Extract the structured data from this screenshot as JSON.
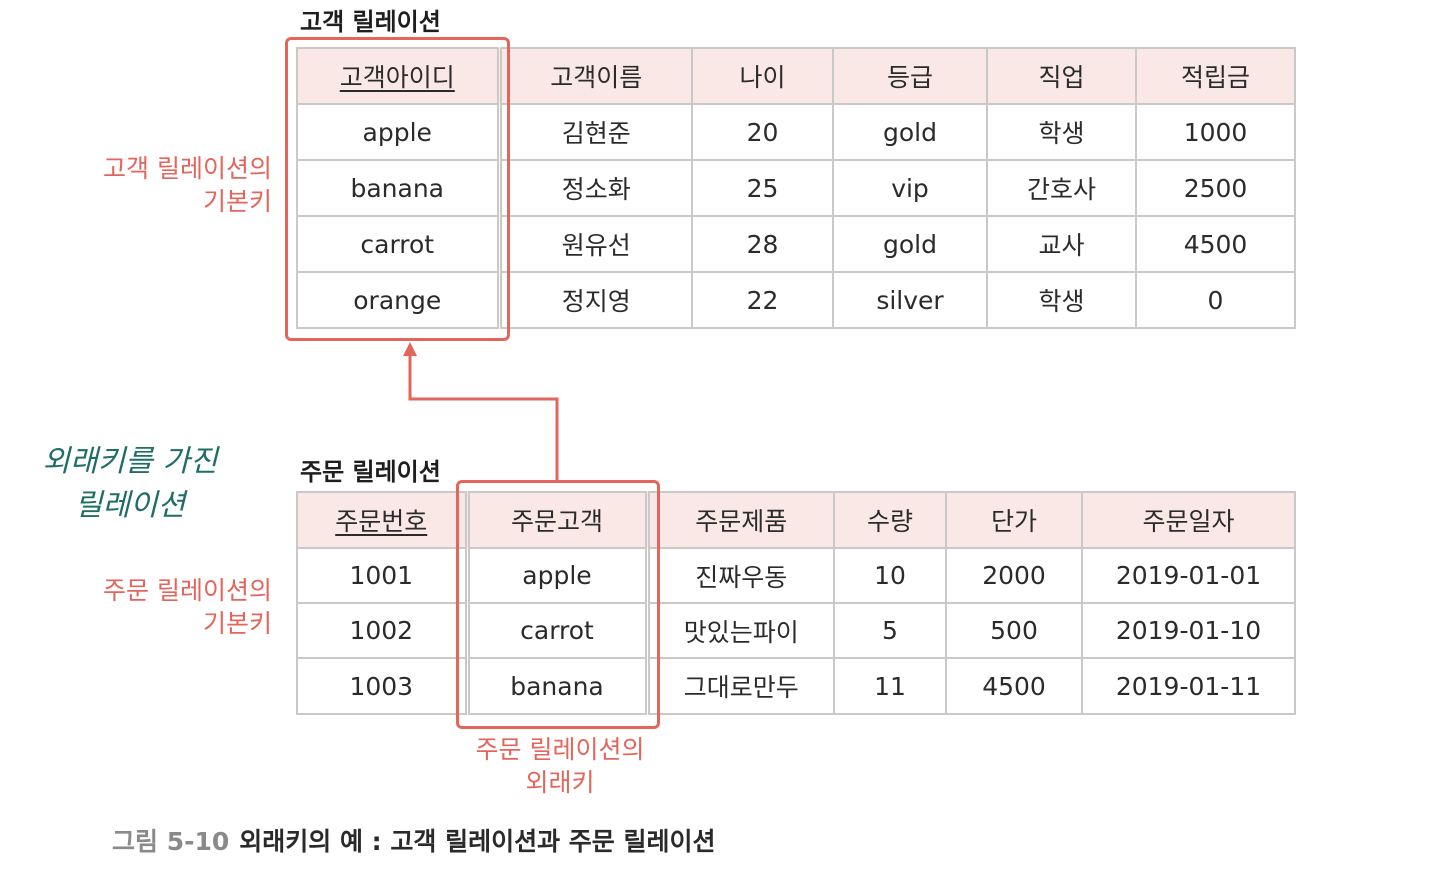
{
  "customer": {
    "title": "고객 릴레이션",
    "headers": [
      "고객아이디",
      "고객이름",
      "나이",
      "등급",
      "직업",
      "적립금"
    ],
    "rows": [
      [
        "apple",
        "김현준",
        "20",
        "gold",
        "학생",
        "1000"
      ],
      [
        "banana",
        "정소화",
        "25",
        "vip",
        "간호사",
        "2500"
      ],
      [
        "carrot",
        "원유선",
        "28",
        "gold",
        "교사",
        "4500"
      ],
      [
        "orange",
        "정지영",
        "22",
        "silver",
        "학생",
        "0"
      ]
    ]
  },
  "order": {
    "title": "주문 릴레이션",
    "headers": [
      "주문번호",
      "주문고객",
      "주문제품",
      "수량",
      "단가",
      "주문일자"
    ],
    "rows": [
      [
        "1001",
        "apple",
        "진짜우동",
        "10",
        "2000",
        "2019-01-01"
      ],
      [
        "1002",
        "carrot",
        "맛있는파이",
        "5",
        "500",
        "2019-01-10"
      ],
      [
        "1003",
        "banana",
        "그대로만두",
        "11",
        "4500",
        "2019-01-11"
      ]
    ]
  },
  "notes": {
    "customer_pk": [
      "고객 릴레이션의",
      "기본키"
    ],
    "order_pk": [
      "주문 릴레이션의",
      "기본키"
    ],
    "order_fk": [
      "주문 릴레이션의",
      "외래키"
    ],
    "handwritten": [
      "외래키를 가진",
      "릴레이션"
    ]
  },
  "caption": {
    "number": "그림 5-10",
    "text": "외래키의 예 : 고객 릴레이션과 주문 릴레이션"
  },
  "colors": {
    "highlight": "#e3655b",
    "header_bg": "#fae8e6",
    "handwritten": "#1f6e66",
    "border": "#c9c9c9"
  }
}
